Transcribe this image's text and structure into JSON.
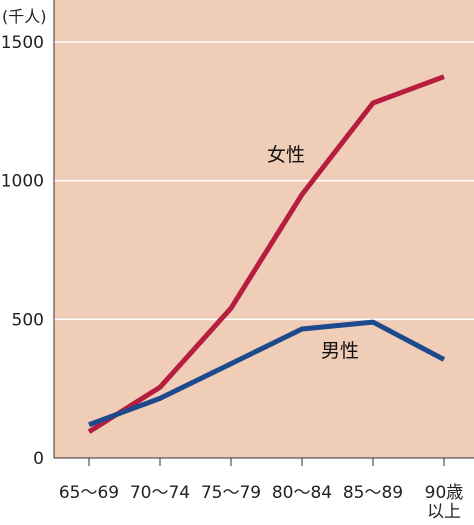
{
  "chart_data": {
    "type": "line",
    "title": "",
    "xlabel": "",
    "ylabel": "",
    "unit_label": "(千人)",
    "categories": [
      "65〜69",
      "70〜74",
      "75〜79",
      "80〜84",
      "85〜89",
      "90歳\n以上"
    ],
    "y_ticks": [
      0,
      500,
      1000,
      1500
    ],
    "ylim": [
      0,
      1650
    ],
    "grid": true,
    "legend": "inline-labels",
    "series": [
      {
        "name": "女性",
        "color": "#b51e3f",
        "values": [
          95,
          255,
          540,
          950,
          1280,
          1375
        ]
      },
      {
        "name": "男性",
        "color": "#1c4a8c",
        "values": [
          120,
          215,
          340,
          465,
          490,
          355
        ]
      }
    ],
    "colors": {
      "plot_bg": "#f0cdb7",
      "grid": "#ffffff",
      "axis": "#333333"
    }
  }
}
